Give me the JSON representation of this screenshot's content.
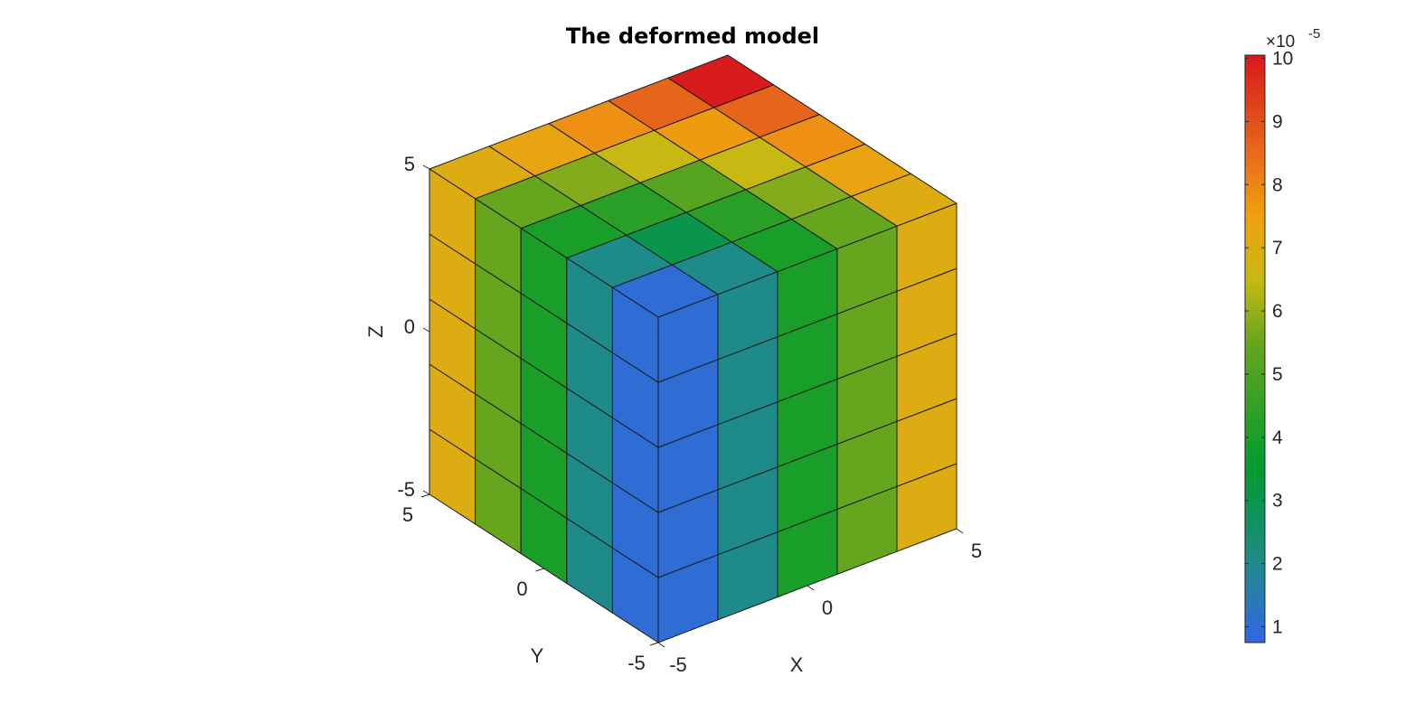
{
  "chart_data": {
    "type": "heatmap",
    "title": "The deformed model",
    "xlabel": "X",
    "ylabel": "Y",
    "zlabel": "Z",
    "x_ticks": [
      "-5",
      "0",
      "5"
    ],
    "y_ticks": [
      "-5",
      "0",
      "5"
    ],
    "z_ticks": [
      "-5",
      "0",
      "5"
    ],
    "xlim": [
      -5,
      5
    ],
    "ylim": [
      -5,
      5
    ],
    "zlim": [
      -5,
      5
    ],
    "grid": "5x5x5 hexahedral elements",
    "colorbar": {
      "exponent_label": "×10",
      "exponent": "-5",
      "ticks": [
        "1",
        "2",
        "3",
        "4",
        "5",
        "6",
        "7",
        "8",
        "9",
        "10"
      ],
      "tick_values": [
        1,
        2,
        3,
        4,
        5,
        6,
        7,
        8,
        9,
        10
      ],
      "min": 0.75,
      "max": 10.05,
      "stops": [
        {
          "v": 0.75,
          "color": "#3366e6"
        },
        {
          "v": 2.0,
          "color": "#1f8a8a"
        },
        {
          "v": 3.5,
          "color": "#009b2e"
        },
        {
          "v": 5.5,
          "color": "#66a61e"
        },
        {
          "v": 6.5,
          "color": "#c8b814"
        },
        {
          "v": 7.5,
          "color": "#f0a010"
        },
        {
          "v": 8.5,
          "color": "#e86a1a"
        },
        {
          "v": 10.05,
          "color": "#d7191c"
        }
      ]
    },
    "top_face_values": [
      [
        1.0,
        2.0,
        4.0,
        5.5,
        7.0
      ],
      [
        2.0,
        3.0,
        4.3,
        5.8,
        7.3
      ],
      [
        4.0,
        4.3,
        5.2,
        6.5,
        7.8
      ],
      [
        5.5,
        5.8,
        6.5,
        7.6,
        8.6
      ],
      [
        7.0,
        7.3,
        7.8,
        8.6,
        10.0
      ]
    ],
    "left_face_column_values": [
      7.0,
      5.5,
      4.0,
      2.0,
      1.0
    ],
    "right_face_column_values": [
      1.0,
      2.0,
      4.0,
      5.5,
      7.0
    ]
  }
}
